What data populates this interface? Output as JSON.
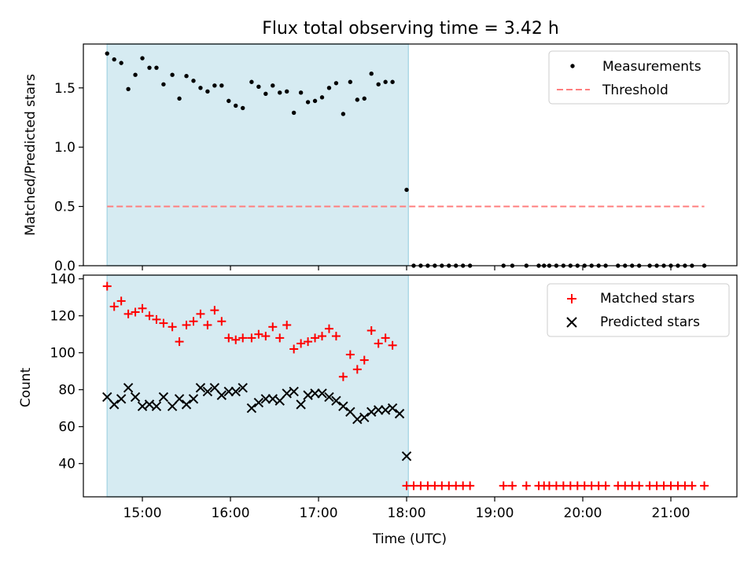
{
  "title": "Flux total observing time = 3.42 h",
  "xlabel": "Time (UTC)",
  "x_ticks": [
    "15:00",
    "16:00",
    "17:00",
    "18:00",
    "19:00",
    "20:00",
    "21:00"
  ],
  "x_tick_hours": [
    15,
    16,
    17,
    18,
    19,
    20,
    21
  ],
  "xlim": [
    14.33,
    21.75
  ],
  "shaded_span": [
    14.6,
    18.02
  ],
  "colors": {
    "shade": "#add8e6",
    "threshold": "#ff7f7f",
    "measurements": "#000000",
    "matched": "#ff0000",
    "predicted": "#000000"
  },
  "chart_data": [
    {
      "type": "scatter",
      "ylabel": "Matched/Predicted stars",
      "ylim": [
        0,
        1.87
      ],
      "y_ticks": [
        0.0,
        0.5,
        1.0,
        1.5
      ],
      "y_tick_labels": [
        "0.0",
        "0.5",
        "1.0",
        "1.5"
      ],
      "legend_position": "top-right",
      "series": [
        {
          "name": "Measurements",
          "marker": "dot",
          "points": [
            [
              14.6,
              1.79
            ],
            [
              14.68,
              1.74
            ],
            [
              14.76,
              1.71
            ],
            [
              14.84,
              1.49
            ],
            [
              14.92,
              1.61
            ],
            [
              15.0,
              1.75
            ],
            [
              15.08,
              1.67
            ],
            [
              15.16,
              1.67
            ],
            [
              15.24,
              1.53
            ],
            [
              15.34,
              1.61
            ],
            [
              15.42,
              1.41
            ],
            [
              15.5,
              1.6
            ],
            [
              15.58,
              1.56
            ],
            [
              15.66,
              1.5
            ],
            [
              15.74,
              1.47
            ],
            [
              15.82,
              1.52
            ],
            [
              15.9,
              1.52
            ],
            [
              15.98,
              1.39
            ],
            [
              16.06,
              1.35
            ],
            [
              16.14,
              1.33
            ],
            [
              16.24,
              1.55
            ],
            [
              16.32,
              1.51
            ],
            [
              16.4,
              1.45
            ],
            [
              16.48,
              1.52
            ],
            [
              16.56,
              1.46
            ],
            [
              16.64,
              1.47
            ],
            [
              16.72,
              1.29
            ],
            [
              16.8,
              1.46
            ],
            [
              16.88,
              1.38
            ],
            [
              16.96,
              1.39
            ],
            [
              17.04,
              1.42
            ],
            [
              17.12,
              1.5
            ],
            [
              17.2,
              1.54
            ],
            [
              17.28,
              1.28
            ],
            [
              17.36,
              1.55
            ],
            [
              17.44,
              1.4
            ],
            [
              17.52,
              1.41
            ],
            [
              17.6,
              1.62
            ],
            [
              17.68,
              1.53
            ],
            [
              17.76,
              1.55
            ],
            [
              17.84,
              1.55
            ],
            [
              18.0,
              0.64
            ],
            [
              18.08,
              0
            ],
            [
              18.16,
              0
            ],
            [
              18.24,
              0
            ],
            [
              18.32,
              0
            ],
            [
              18.4,
              0
            ],
            [
              18.48,
              0
            ],
            [
              18.56,
              0
            ],
            [
              18.64,
              0
            ],
            [
              18.72,
              0
            ],
            [
              19.1,
              0
            ],
            [
              19.2,
              0
            ],
            [
              19.36,
              0
            ],
            [
              19.5,
              0
            ],
            [
              19.56,
              0
            ],
            [
              19.62,
              0
            ],
            [
              19.7,
              0
            ],
            [
              19.78,
              0
            ],
            [
              19.86,
              0
            ],
            [
              19.94,
              0
            ],
            [
              20.02,
              0
            ],
            [
              20.1,
              0
            ],
            [
              20.18,
              0
            ],
            [
              20.26,
              0
            ],
            [
              20.4,
              0
            ],
            [
              20.48,
              0
            ],
            [
              20.56,
              0
            ],
            [
              20.64,
              0
            ],
            [
              20.76,
              0
            ],
            [
              20.84,
              0
            ],
            [
              20.92,
              0
            ],
            [
              21.0,
              0
            ],
            [
              21.08,
              0
            ],
            [
              21.16,
              0
            ],
            [
              21.24,
              0
            ],
            [
              21.38,
              0
            ]
          ]
        },
        {
          "name": "Threshold",
          "marker": "dashed-line",
          "points": [
            [
              14.6,
              0.5
            ],
            [
              21.38,
              0.5
            ]
          ]
        }
      ]
    },
    {
      "type": "scatter",
      "ylabel": "Count",
      "ylim": [
        22,
        142
      ],
      "y_ticks": [
        40,
        60,
        80,
        100,
        120,
        140
      ],
      "y_tick_labels": [
        "40",
        "60",
        "80",
        "100",
        "120",
        "140"
      ],
      "legend_position": "top-right",
      "series": [
        {
          "name": "Matched stars",
          "marker": "plus",
          "points": [
            [
              14.6,
              136
            ],
            [
              14.68,
              125
            ],
            [
              14.76,
              128
            ],
            [
              14.84,
              121
            ],
            [
              14.92,
              122
            ],
            [
              15.0,
              124
            ],
            [
              15.08,
              120
            ],
            [
              15.16,
              118
            ],
            [
              15.24,
              116
            ],
            [
              15.34,
              114
            ],
            [
              15.42,
              106
            ],
            [
              15.5,
              115
            ],
            [
              15.58,
              117
            ],
            [
              15.66,
              121
            ],
            [
              15.74,
              115
            ],
            [
              15.82,
              123
            ],
            [
              15.9,
              117
            ],
            [
              15.98,
              108
            ],
            [
              16.06,
              107
            ],
            [
              16.14,
              108
            ],
            [
              16.24,
              108
            ],
            [
              16.32,
              110
            ],
            [
              16.4,
              109
            ],
            [
              16.48,
              114
            ],
            [
              16.56,
              108
            ],
            [
              16.64,
              115
            ],
            [
              16.72,
              102
            ],
            [
              16.8,
              105
            ],
            [
              16.88,
              106
            ],
            [
              16.96,
              108
            ],
            [
              17.04,
              109
            ],
            [
              17.12,
              113
            ],
            [
              17.2,
              109
            ],
            [
              17.28,
              87
            ],
            [
              17.36,
              99
            ],
            [
              17.44,
              91
            ],
            [
              17.52,
              96
            ],
            [
              17.6,
              112
            ],
            [
              17.68,
              105
            ],
            [
              17.76,
              108
            ],
            [
              17.84,
              104
            ],
            [
              18.0,
              28
            ],
            [
              18.08,
              28
            ],
            [
              18.16,
              28
            ],
            [
              18.24,
              28
            ],
            [
              18.32,
              28
            ],
            [
              18.4,
              28
            ],
            [
              18.48,
              28
            ],
            [
              18.56,
              28
            ],
            [
              18.64,
              28
            ],
            [
              18.72,
              28
            ],
            [
              19.1,
              28
            ],
            [
              19.2,
              28
            ],
            [
              19.36,
              28
            ],
            [
              19.5,
              28
            ],
            [
              19.56,
              28
            ],
            [
              19.62,
              28
            ],
            [
              19.7,
              28
            ],
            [
              19.78,
              28
            ],
            [
              19.86,
              28
            ],
            [
              19.94,
              28
            ],
            [
              20.02,
              28
            ],
            [
              20.1,
              28
            ],
            [
              20.18,
              28
            ],
            [
              20.26,
              28
            ],
            [
              20.4,
              28
            ],
            [
              20.48,
              28
            ],
            [
              20.56,
              28
            ],
            [
              20.64,
              28
            ],
            [
              20.76,
              28
            ],
            [
              20.84,
              28
            ],
            [
              20.92,
              28
            ],
            [
              21.0,
              28
            ],
            [
              21.08,
              28
            ],
            [
              21.16,
              28
            ],
            [
              21.24,
              28
            ],
            [
              21.38,
              28
            ]
          ]
        },
        {
          "name": "Predicted stars",
          "marker": "x",
          "points": [
            [
              14.6,
              76
            ],
            [
              14.68,
              72
            ],
            [
              14.76,
              75
            ],
            [
              14.84,
              81
            ],
            [
              14.92,
              76
            ],
            [
              15.0,
              71
            ],
            [
              15.08,
              72
            ],
            [
              15.16,
              71
            ],
            [
              15.24,
              76
            ],
            [
              15.34,
              71
            ],
            [
              15.42,
              75
            ],
            [
              15.5,
              72
            ],
            [
              15.58,
              75
            ],
            [
              15.66,
              81
            ],
            [
              15.74,
              79
            ],
            [
              15.82,
              81
            ],
            [
              15.9,
              77
            ],
            [
              15.98,
              79
            ],
            [
              16.06,
              79
            ],
            [
              16.14,
              81
            ],
            [
              16.24,
              70
            ],
            [
              16.32,
              73
            ],
            [
              16.4,
              75
            ],
            [
              16.48,
              75
            ],
            [
              16.56,
              74
            ],
            [
              16.64,
              78
            ],
            [
              16.72,
              79
            ],
            [
              16.8,
              72
            ],
            [
              16.88,
              77
            ],
            [
              16.96,
              78
            ],
            [
              17.04,
              78
            ],
            [
              17.12,
              76
            ],
            [
              17.2,
              74
            ],
            [
              17.28,
              71
            ],
            [
              17.36,
              68
            ],
            [
              17.44,
              64
            ],
            [
              17.52,
              65
            ],
            [
              17.6,
              68
            ],
            [
              17.68,
              69
            ],
            [
              17.76,
              69
            ],
            [
              17.84,
              70
            ],
            [
              17.92,
              67
            ],
            [
              18.0,
              44
            ]
          ]
        }
      ]
    }
  ]
}
